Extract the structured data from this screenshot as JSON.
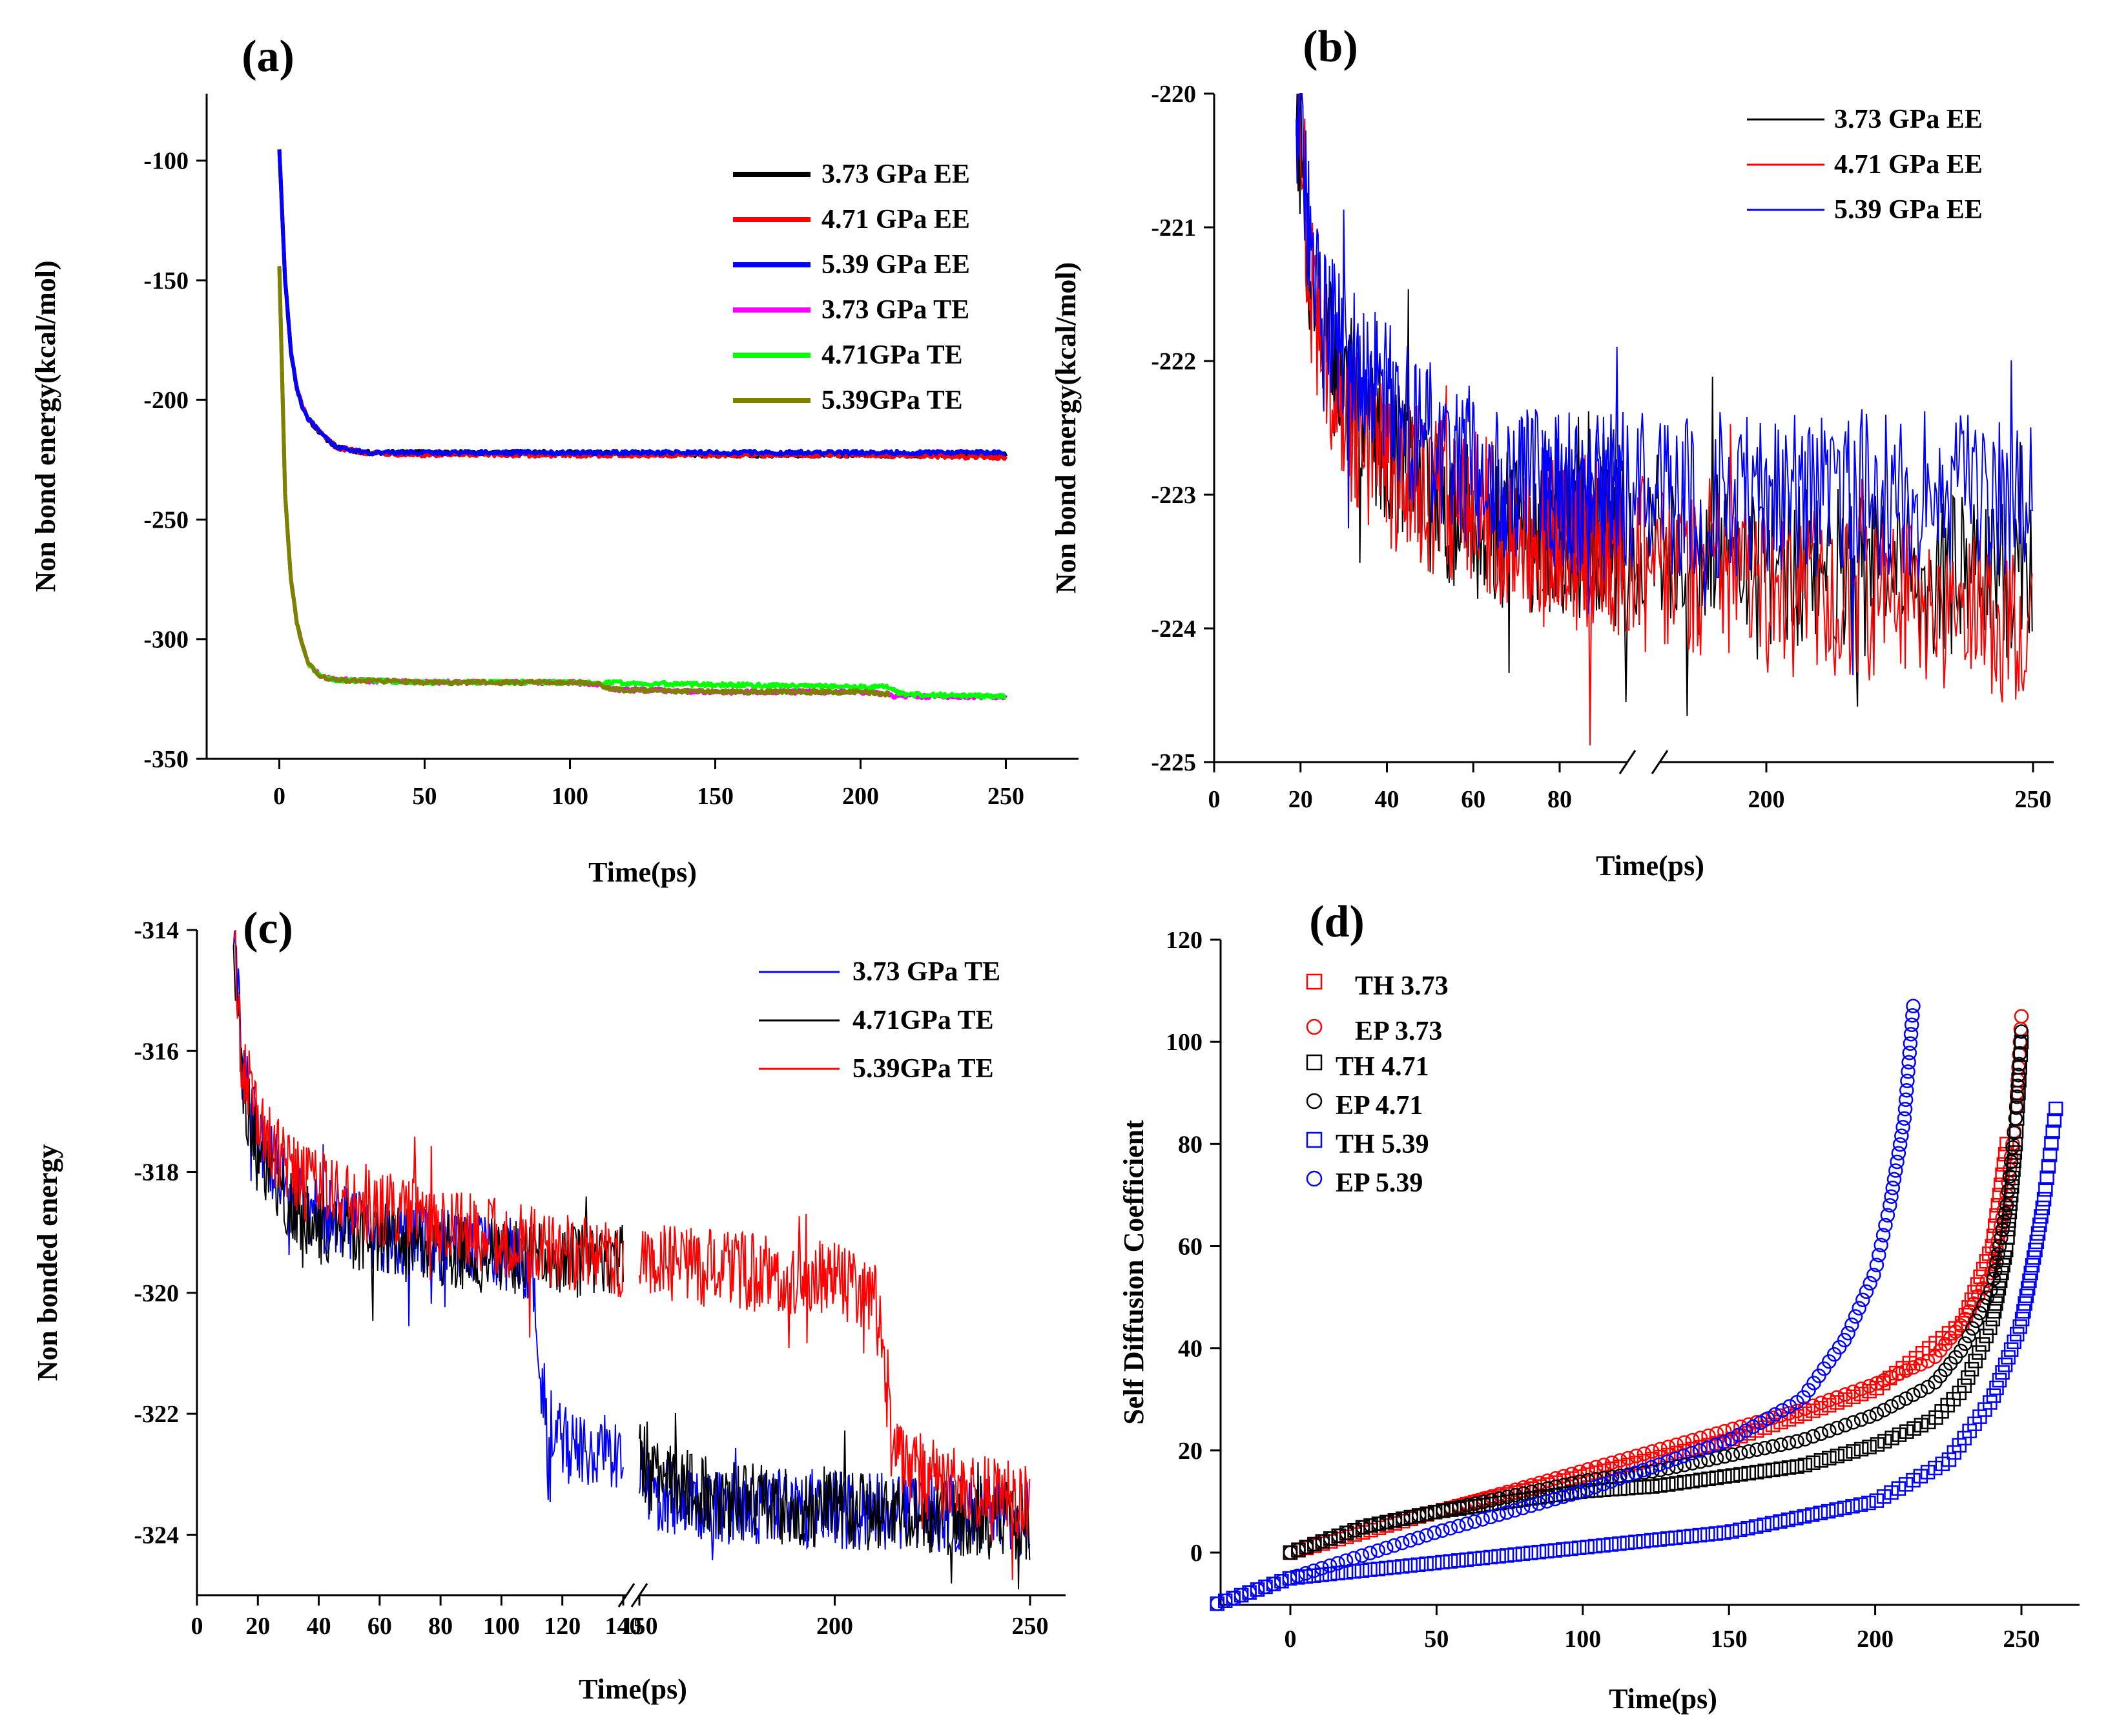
{
  "chart_data": [
    {
      "panel": "(a)",
      "type": "line",
      "xlabel": "Time(ps)",
      "ylabel": "Non bond energy(kcal/mol)",
      "xlim": [
        -25,
        275
      ],
      "ylim": [
        -350,
        -72
      ],
      "xticks": [
        0,
        50,
        100,
        150,
        200,
        250
      ],
      "yticks": [
        -350,
        -300,
        -250,
        -200,
        -150,
        -100
      ],
      "legend_position": "top-right",
      "series": [
        {
          "name": "3.73 GPa EE",
          "color": "#000000",
          "x": [
            0,
            2,
            4,
            6,
            8,
            10,
            15,
            20,
            30,
            50,
            100,
            150,
            200,
            250
          ],
          "y": [
            -95,
            -150,
            -180,
            -195,
            -203,
            -208,
            -215,
            -220,
            -222,
            -222,
            -222,
            -223,
            -223,
            -223
          ]
        },
        {
          "name": "4.71 GPa EE",
          "color": "#ff0000",
          "x": [
            0,
            2,
            4,
            6,
            8,
            10,
            15,
            20,
            30,
            50,
            100,
            150,
            200,
            250
          ],
          "y": [
            -95,
            -150,
            -180,
            -195,
            -203,
            -208,
            -215,
            -220,
            -222,
            -223,
            -223,
            -223,
            -223,
            -224
          ]
        },
        {
          "name": "5.39 GPa EE",
          "color": "#0000ff",
          "x": [
            0,
            2,
            4,
            6,
            8,
            10,
            15,
            20,
            30,
            50,
            100,
            150,
            200,
            250
          ],
          "y": [
            -95,
            -150,
            -180,
            -195,
            -203,
            -208,
            -215,
            -220,
            -222,
            -222,
            -222,
            -222,
            -222,
            -222
          ]
        },
        {
          "name": "3.73 GPa TE",
          "color": "#ff00ff",
          "x": [
            0,
            2,
            4,
            6,
            8,
            10,
            12,
            15,
            20,
            50,
            100,
            110,
            115,
            150,
            200,
            210,
            212,
            250
          ],
          "y": [
            -144,
            -240,
            -275,
            -293,
            -303,
            -310,
            -313,
            -316,
            -317,
            -318,
            -318,
            -319,
            -321,
            -322,
            -322,
            -323,
            -324,
            -324
          ]
        },
        {
          "name": "4.71GPa TE",
          "color": "#00ff00",
          "x": [
            0,
            2,
            4,
            6,
            8,
            10,
            12,
            15,
            20,
            50,
            100,
            150,
            200,
            210,
            212,
            215,
            250
          ],
          "y": [
            -144,
            -240,
            -275,
            -293,
            -303,
            -310,
            -313,
            -316,
            -317,
            -318,
            -318,
            -319,
            -320,
            -320,
            -322,
            -323,
            -324
          ]
        },
        {
          "name": "5.39GPa TE",
          "color": "#808000",
          "x": [
            0,
            2,
            4,
            6,
            8,
            10,
            12,
            15,
            20,
            50,
            100,
            110,
            115,
            150,
            200,
            210
          ],
          "y": [
            -144,
            -240,
            -275,
            -293,
            -303,
            -310,
            -313,
            -316,
            -317,
            -318,
            -318,
            -319,
            -321,
            -322,
            -322,
            -323
          ]
        }
      ]
    },
    {
      "panel": "(b)",
      "type": "line",
      "xlabel": "Time(ps)",
      "ylabel": "Non bond energy(kcal/mol)",
      "axis_break": "after 80",
      "ylim": [
        -225,
        -220
      ],
      "xticks_left": [
        0,
        20,
        40,
        60,
        80
      ],
      "xticks_right": [
        200,
        250
      ],
      "yticks": [
        -225,
        -224,
        -223,
        -222,
        -221,
        -220
      ],
      "legend_position": "top-right",
      "series": [
        {
          "name": "3.73 GPa EE",
          "color": "#000000",
          "x": [
            19,
            22,
            25,
            30,
            40,
            50,
            60,
            70,
            80,
            90,
            95,
            160,
            180,
            200,
            220,
            240,
            250
          ],
          "y": [
            -220,
            -221.3,
            -221.8,
            -222.2,
            -222.6,
            -223,
            -223.2,
            -223.3,
            -223.3,
            -223.3,
            -223.3,
            -223.3,
            -223.4,
            -223.5,
            -223.6,
            -223.6,
            -223.7
          ]
        },
        {
          "name": "4.71 GPa EE",
          "color": "#ff0000",
          "x": [
            19,
            22,
            25,
            30,
            40,
            50,
            60,
            70,
            80,
            90,
            95,
            160,
            180,
            200,
            220,
            240,
            250
          ],
          "y": [
            -220,
            -221.4,
            -221.9,
            -222.4,
            -222.8,
            -223,
            -223.1,
            -223.3,
            -223.3,
            -223.3,
            -223.3,
            -223.4,
            -223.5,
            -223.7,
            -223.8,
            -223.9,
            -224
          ]
        },
        {
          "name": "5.39 GPa EE",
          "color": "#0000ff",
          "x": [
            19,
            22,
            25,
            30,
            40,
            50,
            60,
            70,
            80,
            90,
            95,
            160,
            180,
            200,
            220,
            240,
            250
          ],
          "y": [
            -220,
            -221.1,
            -221.5,
            -221.9,
            -222.3,
            -222.6,
            -222.8,
            -222.9,
            -223,
            -223.1,
            -223.1,
            -223,
            -223,
            -223,
            -223,
            -223,
            -223
          ]
        }
      ]
    },
    {
      "panel": "(c)",
      "type": "line",
      "xlabel": "Time(ps)",
      "ylabel": "Non bonded energy",
      "axis_break": "between 140 and 150",
      "ylim": [
        -325,
        -314
      ],
      "xticks_left": [
        0,
        20,
        40,
        60,
        80,
        100,
        120,
        140
      ],
      "xticks_right": [
        150,
        200,
        250
      ],
      "yticks": [
        -324,
        -322,
        -320,
        -318,
        -316,
        -314
      ],
      "legend_position": "top-right",
      "series": [
        {
          "name": "3.73 GPa TE",
          "color": "#0000ff",
          "x": [
            12,
            15,
            20,
            30,
            40,
            60,
            80,
            100,
            110,
            113,
            118,
            140,
            150,
            152,
            170,
            200,
            250
          ],
          "y": [
            -314,
            -316.3,
            -317.5,
            -318.3,
            -318.7,
            -319,
            -319.2,
            -319.3,
            -319.5,
            -321.5,
            -322.5,
            -322.7,
            -323,
            -323.3,
            -323.5,
            -323.6,
            -323.7
          ]
        },
        {
          "name": "4.71GPa TE",
          "color": "#000000",
          "x": [
            12,
            15,
            20,
            30,
            40,
            60,
            80,
            100,
            120,
            140,
            150,
            152,
            170,
            200,
            250
          ],
          "y": [
            -314,
            -316.5,
            -317.8,
            -318.5,
            -318.9,
            -319.1,
            -319.3,
            -319.4,
            -319.5,
            -319.5,
            -322.5,
            -323,
            -323.4,
            -323.6,
            -323.8
          ]
        },
        {
          "name": "5.39GPa TE",
          "color": "#ff0000",
          "x": [
            12,
            15,
            20,
            30,
            40,
            60,
            80,
            100,
            120,
            140,
            150,
            170,
            200,
            210,
            213,
            216,
            230,
            250
          ],
          "y": [
            -314,
            -316.3,
            -317.3,
            -318,
            -318.3,
            -318.6,
            -318.9,
            -319.1,
            -319.3,
            -319.5,
            -319.5,
            -319.6,
            -319.8,
            -320,
            -321.5,
            -322.8,
            -323.2,
            -323.5
          ]
        }
      ]
    },
    {
      "panel": "(d)",
      "type": "scatter",
      "xlabel": "Time(ps)",
      "ylabel": "Self Diffusion Coefficient",
      "xlim": [
        -25,
        265
      ],
      "ylim": [
        -10,
        120
      ],
      "xticks": [
        0,
        50,
        100,
        150,
        200,
        250
      ],
      "yticks": [
        0,
        20,
        40,
        60,
        80,
        100,
        120
      ],
      "legend_position": "top-left",
      "series": [
        {
          "name": "TH 3.73",
          "marker": "square",
          "color": "#ff0000",
          "x": [
            0,
            50,
            100,
            150,
            200,
            230,
            240,
            245
          ],
          "y": [
            0,
            8,
            15,
            22,
            32,
            45,
            60,
            80
          ]
        },
        {
          "name": "EP 3.73",
          "marker": "circle",
          "color": "#ff0000",
          "x": [
            0,
            25,
            50,
            75,
            100,
            125,
            150,
            175,
            200,
            220,
            230,
            240,
            245,
            248,
            250
          ],
          "y": [
            0,
            5,
            8,
            12,
            16,
            20,
            24,
            28,
            33,
            38,
            45,
            55,
            70,
            85,
            105
          ]
        },
        {
          "name": "TH 4.71",
          "marker": "square",
          "color": "#000000",
          "x": [
            0,
            25,
            50,
            75,
            100,
            125,
            150,
            175,
            200,
            220,
            230,
            240,
            245,
            248,
            250
          ],
          "y": [
            0,
            5,
            8,
            10,
            12,
            13,
            15,
            17,
            21,
            26,
            32,
            45,
            60,
            80,
            100
          ]
        },
        {
          "name": "EP 4.71",
          "marker": "circle",
          "color": "#000000",
          "x": [
            0,
            25,
            50,
            75,
            100,
            125,
            150,
            175,
            200,
            220,
            230,
            240,
            245,
            248,
            250
          ],
          "y": [
            0,
            5,
            8,
            11,
            14,
            16,
            19,
            22,
            27,
            33,
            40,
            52,
            68,
            85,
            102
          ]
        },
        {
          "name": "TH 5.39",
          "marker": "square",
          "color": "#0000ff",
          "x": [
            -25,
            0,
            50,
            100,
            150,
            200,
            225,
            240,
            250,
            255,
            258,
            262
          ],
          "y": [
            -10,
            -5,
            -2,
            1,
            4,
            10,
            18,
            30,
            45,
            60,
            70,
            88
          ]
        },
        {
          "name": "EP 5.39",
          "marker": "circle",
          "color": "#0000ff",
          "x": [
            -25,
            0,
            50,
            100,
            150,
            175,
            190,
            200,
            205,
            210,
            213
          ],
          "y": [
            -10,
            -5,
            4,
            12,
            22,
            30,
            42,
            55,
            68,
            85,
            107
          ]
        }
      ]
    }
  ]
}
